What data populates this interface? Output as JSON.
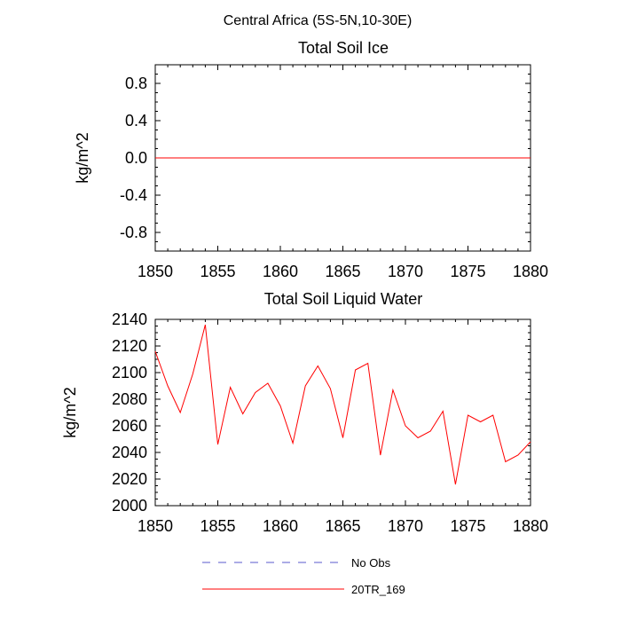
{
  "figure": {
    "main_title": "Central Africa (5S-5N,10-30E)",
    "legend": [
      {
        "label": "No Obs",
        "color": "#5a5acd",
        "dash": true
      },
      {
        "label": "20TR_169",
        "color": "#ff0000",
        "dash": false
      }
    ]
  },
  "chart_data": [
    {
      "type": "line",
      "title": "Total Soil Ice",
      "xlabel": "",
      "ylabel": "kg/m^2",
      "xlim": [
        1850,
        1880
      ],
      "ylim": [
        -1.0,
        1.0
      ],
      "x_ticks": [
        1850,
        1855,
        1860,
        1865,
        1870,
        1875,
        1880
      ],
      "y_ticks": [
        -0.8,
        -0.4,
        0.0,
        0.4,
        0.8
      ],
      "x_tick_labels": [
        "1850",
        "1855",
        "1860",
        "1865",
        "1870",
        "1875",
        "1880"
      ],
      "y_tick_labels": [
        "-0.8",
        "-0.4",
        "0.0",
        "0.4",
        "0.8"
      ],
      "series": [
        {
          "name": "20TR_169",
          "color": "#ff0000",
          "x": [
            1850,
            1880
          ],
          "y": [
            0.0,
            0.0
          ]
        }
      ]
    },
    {
      "type": "line",
      "title": "Total Soil Liquid Water",
      "xlabel": "",
      "ylabel": "kg/m^2",
      "xlim": [
        1850,
        1880
      ],
      "ylim": [
        2000,
        2140
      ],
      "x_ticks": [
        1850,
        1855,
        1860,
        1865,
        1870,
        1875,
        1880
      ],
      "y_ticks": [
        2000,
        2020,
        2040,
        2060,
        2080,
        2100,
        2120,
        2140
      ],
      "x_tick_labels": [
        "1850",
        "1855",
        "1860",
        "1865",
        "1870",
        "1875",
        "1880"
      ],
      "y_tick_labels": [
        "2000",
        "2020",
        "2040",
        "2060",
        "2080",
        "2100",
        "2120",
        "2140"
      ],
      "series": [
        {
          "name": "20TR_169",
          "color": "#ff0000",
          "x": [
            1850,
            1851,
            1852,
            1853,
            1854,
            1855,
            1856,
            1857,
            1858,
            1859,
            1860,
            1861,
            1862,
            1863,
            1864,
            1865,
            1866,
            1867,
            1868,
            1869,
            1870,
            1871,
            1872,
            1873,
            1874,
            1875,
            1876,
            1877,
            1878,
            1879,
            1880
          ],
          "y": [
            2116,
            2090,
            2070,
            2099,
            2136,
            2046,
            2089,
            2069,
            2085,
            2092,
            2075,
            2047,
            2090,
            2105,
            2088,
            2051,
            2102,
            2107,
            2038,
            2087,
            2060,
            2051,
            2056,
            2071,
            2016,
            2068,
            2063,
            2068,
            2033,
            2038,
            2048
          ]
        }
      ]
    }
  ]
}
